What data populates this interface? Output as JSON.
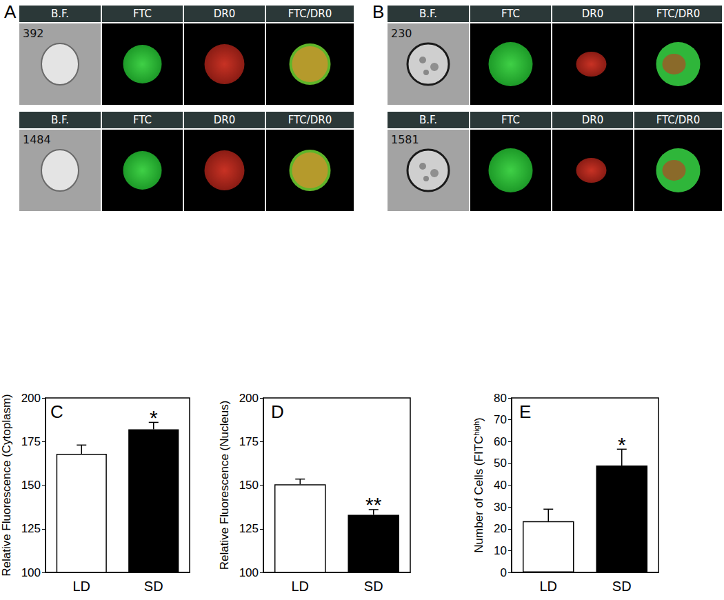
{
  "panels": [
    {
      "label": "A",
      "headers": [
        "B.F.",
        "FTC",
        "DR0",
        "FTC/DR0"
      ],
      "rows": [
        "392",
        "1484"
      ]
    },
    {
      "label": "B",
      "headers": [
        "B.F.",
        "FTC",
        "DR0",
        "FTC/DR0"
      ],
      "rows": [
        "230",
        "1581"
      ]
    }
  ],
  "chart_data": [
    {
      "type": "bar",
      "panel_label": "C",
      "categories": [
        "LD",
        "SD"
      ],
      "values": [
        168,
        182
      ],
      "errors": [
        5,
        4
      ],
      "colors": [
        "#ffffff",
        "#000000"
      ],
      "y_label": [
        {
          "text": "Relative Fluorescence (Cytoplasm)"
        }
      ],
      "ylim": [
        100,
        200
      ],
      "yticks": [
        100,
        125,
        150,
        175,
        200
      ],
      "grid": false,
      "annotations": [
        {
          "category": "SD",
          "text": "*"
        }
      ]
    },
    {
      "type": "bar",
      "panel_label": "D",
      "categories": [
        "LD",
        "SD"
      ],
      "values": [
        150.5,
        133
      ],
      "errors": [
        3,
        3
      ],
      "colors": [
        "#ffffff",
        "#000000"
      ],
      "y_label": [
        {
          "text": "Relative Fluorescence (Nucleus)"
        }
      ],
      "ylim": [
        100,
        200
      ],
      "yticks": [
        100,
        125,
        150,
        175,
        200
      ],
      "grid": false,
      "annotations": [
        {
          "category": "SD",
          "text": "**"
        }
      ]
    },
    {
      "type": "bar",
      "panel_label": "E",
      "categories": [
        "LD",
        "SD"
      ],
      "values": [
        23.5,
        49
      ],
      "errors": [
        5.5,
        7.5
      ],
      "colors": [
        "#ffffff",
        "#000000"
      ],
      "y_label": [
        {
          "text": "Number of Cells (FITC"
        },
        {
          "text": "high",
          "sup": true
        },
        {
          "text": ")"
        }
      ],
      "ylim": [
        0,
        80
      ],
      "yticks": [
        0,
        10,
        20,
        30,
        40,
        50,
        60,
        70,
        80
      ],
      "grid": false,
      "annotations": [
        {
          "category": "SD",
          "text": "*"
        }
      ]
    }
  ]
}
